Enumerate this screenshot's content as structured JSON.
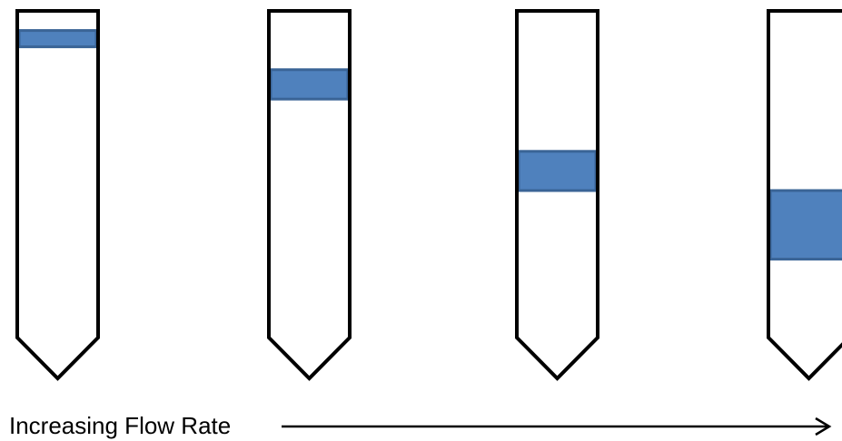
{
  "diagram": {
    "axis_label": "Increasing Flow Rate",
    "band_color": "#4f81bd",
    "band_border_color": "#3a6496",
    "outline_color": "#000000",
    "tubes": [
      {
        "name": "tube-1",
        "band_position": 0.06,
        "band_thickness": 0.05
      },
      {
        "name": "tube-2",
        "band_position": 0.18,
        "band_thickness": 0.09
      },
      {
        "name": "tube-3",
        "band_position": 0.43,
        "band_thickness": 0.12
      },
      {
        "name": "tube-4",
        "band_position": 0.55,
        "band_thickness": 0.21
      }
    ]
  }
}
